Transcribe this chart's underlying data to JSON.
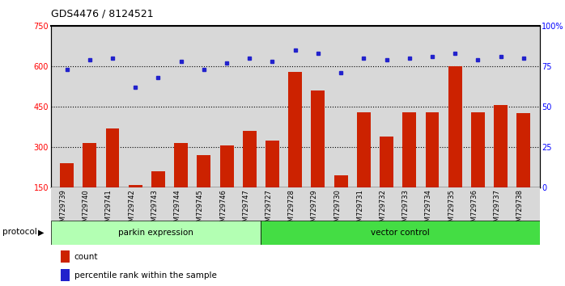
{
  "title": "GDS4476 / 8124521",
  "samples": [
    "GSM729739",
    "GSM729740",
    "GSM729741",
    "GSM729742",
    "GSM729743",
    "GSM729744",
    "GSM729745",
    "GSM729746",
    "GSM729747",
    "GSM729727",
    "GSM729728",
    "GSM729729",
    "GSM729730",
    "GSM729731",
    "GSM729732",
    "GSM729733",
    "GSM729734",
    "GSM729735",
    "GSM729736",
    "GSM729737",
    "GSM729738"
  ],
  "counts": [
    240,
    315,
    370,
    160,
    210,
    315,
    270,
    305,
    360,
    325,
    580,
    510,
    195,
    430,
    340,
    430,
    430,
    600,
    430,
    455,
    425
  ],
  "percentile_ranks": [
    73,
    79,
    80,
    62,
    68,
    78,
    73,
    77,
    80,
    78,
    85,
    83,
    71,
    80,
    79,
    80,
    81,
    83,
    79,
    81,
    80
  ],
  "group1_label": "parkin expression",
  "group2_label": "vector control",
  "group1_count": 9,
  "group2_count": 12,
  "protocol_label": "protocol",
  "ylim_left": [
    150,
    750
  ],
  "ylim_right": [
    0,
    100
  ],
  "yticks_left": [
    150,
    300,
    450,
    600,
    750
  ],
  "yticks_right": [
    0,
    25,
    50,
    75,
    100
  ],
  "ytick_labels_right": [
    "0",
    "25",
    "50",
    "75",
    "100%"
  ],
  "bar_color": "#cc2200",
  "dot_color": "#2222cc",
  "group1_bg": "#b3ffb3",
  "group2_bg": "#44dd44",
  "legend_bar_label": "count",
  "legend_dot_label": "percentile rank within the sample",
  "hline_values": [
    300,
    450,
    600
  ],
  "background_color": "#d8d8d8"
}
